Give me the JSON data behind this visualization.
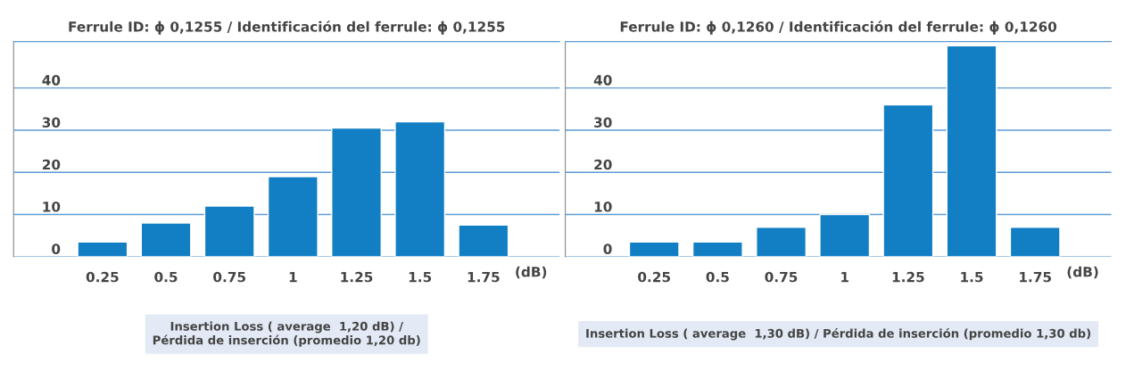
{
  "chart_data": [
    {
      "type": "bar",
      "title": "Ferrule ID: ϕ 0,1255 / Identificación del ferrule: ϕ 0,1255",
      "xlabel": "(dB)",
      "categories": [
        "0.25",
        "0.5",
        "0.75",
        "1",
        "1.25",
        "1.5",
        "1.75"
      ],
      "values": [
        3.5,
        8,
        12,
        19,
        30.5,
        32,
        7.5
      ],
      "color": "#127ec3",
      "ylim": [
        0,
        51
      ],
      "yticks": [
        0,
        10,
        20,
        30,
        40
      ],
      "grid": "y",
      "annotations": [
        "Insertion Loss ( average  1,20 dB) /\nPérdida de inserción (promedio 1,20 db)"
      ]
    },
    {
      "type": "bar",
      "title": "Ferrule ID: ϕ 0,1260 / Identificación del ferrule: ϕ 0,1260",
      "xlabel": "(dB)",
      "categories": [
        "0.25",
        "0.5",
        "0.75",
        "1",
        "1.25",
        "1.5",
        "1.75"
      ],
      "values": [
        3.5,
        3.5,
        7,
        10,
        36,
        50,
        7
      ],
      "color": "#127ec3",
      "ylim": [
        0,
        51
      ],
      "yticks": [
        0,
        10,
        20,
        30,
        40
      ],
      "grid": "y",
      "annotations": [
        "Insertion Loss ( average  1,30 dB) / Pérdida de inserción (promedio 1,30 db)"
      ]
    }
  ]
}
